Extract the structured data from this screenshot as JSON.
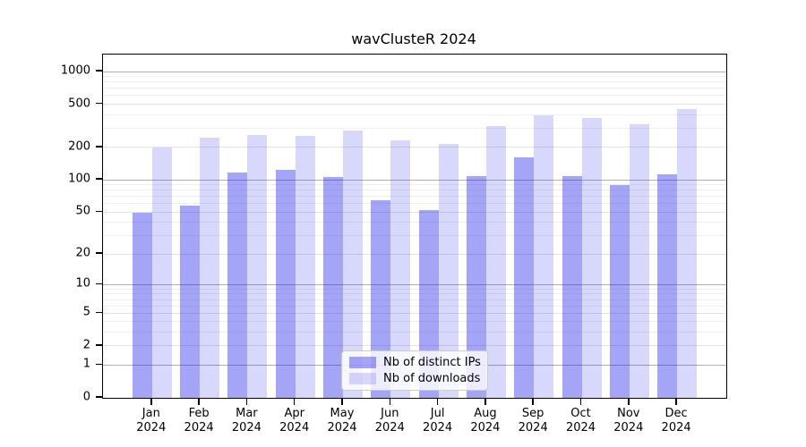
{
  "title": "wavClusteR 2024",
  "chart_data": {
    "type": "bar",
    "title": "wavClusteR 2024",
    "categories": [
      "Jan",
      "Feb",
      "Mar",
      "Apr",
      "May",
      "Jun",
      "Jul",
      "Aug",
      "Sep",
      "Oct",
      "Nov",
      "Dec"
    ],
    "year": "2024",
    "series": [
      {
        "name": "Nb of distinct IPs",
        "color": "rgba(10,10,235,0.37)",
        "values": [
          49,
          58,
          118,
          125,
          107,
          65,
          52,
          108,
          161,
          109,
          90,
          113
        ]
      },
      {
        "name": "Nb of downloads",
        "color": "rgba(10,10,235,0.16)",
        "values": [
          201,
          248,
          260,
          253,
          287,
          234,
          216,
          315,
          396,
          376,
          327,
          452
        ]
      }
    ],
    "yticks": [
      0,
      1,
      2,
      5,
      10,
      20,
      50,
      100,
      200,
      500,
      1000
    ],
    "ytick_labels": [
      "0",
      "1",
      "2",
      "5",
      "10",
      "20",
      "50",
      "100",
      "200",
      "500",
      "1000"
    ],
    "scale": "log10(1+x)",
    "ylim": [
      0,
      1434
    ],
    "grid": true,
    "legend_position": "bottom-center"
  }
}
